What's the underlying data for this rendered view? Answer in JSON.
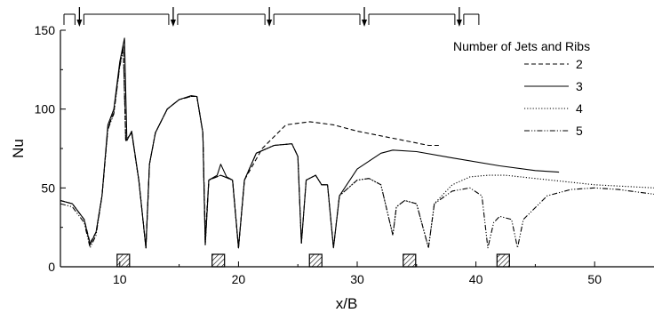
{
  "chart_data": {
    "type": "line",
    "xlabel": "x/B",
    "ylabel": "Nu",
    "xlim": [
      5,
      55
    ],
    "ylim": [
      0,
      150
    ],
    "x_ticks": [
      10,
      20,
      30,
      40,
      50
    ],
    "y_ticks": [
      0,
      50,
      100,
      150
    ],
    "legend": {
      "title": "Number of Jets and Ribs",
      "placement": "top-right"
    },
    "series": [
      {
        "name": "2",
        "dash": "dashed",
        "points": [
          [
            5,
            42
          ],
          [
            6,
            40
          ],
          [
            7,
            30
          ],
          [
            7.5,
            15
          ],
          [
            8,
            22
          ],
          [
            8.5,
            45
          ],
          [
            9,
            88
          ],
          [
            9.5,
            98
          ],
          [
            10,
            128
          ],
          [
            10.3,
            140
          ],
          [
            10.5,
            80
          ],
          [
            11,
            85
          ],
          [
            11.6,
            55
          ],
          [
            12.2,
            12
          ],
          [
            12.5,
            65
          ],
          [
            13,
            85
          ],
          [
            14,
            100
          ],
          [
            15,
            106
          ],
          [
            16,
            108
          ],
          [
            16.5,
            108
          ],
          [
            17,
            85
          ],
          [
            17.2,
            20
          ],
          [
            17.5,
            55
          ],
          [
            18.5,
            58
          ],
          [
            19.5,
            55
          ],
          [
            20,
            12
          ],
          [
            20.5,
            55
          ],
          [
            22,
            75
          ],
          [
            24,
            90
          ],
          [
            26,
            92
          ],
          [
            28,
            90
          ],
          [
            30,
            86
          ],
          [
            32,
            83
          ],
          [
            34,
            80
          ],
          [
            36,
            77
          ],
          [
            37,
            77
          ]
        ]
      },
      {
        "name": "3",
        "dash": "solid",
        "points": [
          [
            5,
            42
          ],
          [
            6,
            40
          ],
          [
            7,
            30
          ],
          [
            7.5,
            14
          ],
          [
            8,
            22
          ],
          [
            8.5,
            45
          ],
          [
            9,
            90
          ],
          [
            9.5,
            100
          ],
          [
            10,
            130
          ],
          [
            10.4,
            145
          ],
          [
            10.6,
            80
          ],
          [
            11,
            86
          ],
          [
            11.6,
            55
          ],
          [
            12.2,
            12
          ],
          [
            12.5,
            65
          ],
          [
            13,
            85
          ],
          [
            14,
            100
          ],
          [
            15,
            106
          ],
          [
            16,
            108.5
          ],
          [
            16.5,
            108
          ],
          [
            17,
            85
          ],
          [
            17.2,
            14
          ],
          [
            17.5,
            55
          ],
          [
            18.2,
            58
          ],
          [
            18.5,
            65
          ],
          [
            19,
            57
          ],
          [
            19.5,
            55
          ],
          [
            20,
            12
          ],
          [
            20.5,
            55
          ],
          [
            21.5,
            72
          ],
          [
            23,
            77
          ],
          [
            24.5,
            78
          ],
          [
            25,
            70
          ],
          [
            25.3,
            15
          ],
          [
            25.7,
            55
          ],
          [
            26.5,
            58
          ],
          [
            27,
            52
          ],
          [
            27.5,
            52
          ],
          [
            28,
            12
          ],
          [
            28.5,
            45
          ],
          [
            30,
            62
          ],
          [
            32,
            72
          ],
          [
            33,
            74
          ],
          [
            35,
            73
          ],
          [
            38,
            69
          ],
          [
            42,
            64
          ],
          [
            45,
            61
          ],
          [
            47,
            60
          ]
        ]
      },
      {
        "name": "4",
        "dash": "dotted",
        "points": [
          [
            5,
            42
          ],
          [
            6,
            40
          ],
          [
            7,
            30
          ],
          [
            7.5,
            14
          ],
          [
            8,
            22
          ],
          [
            8.5,
            45
          ],
          [
            9,
            88
          ],
          [
            9.5,
            98
          ],
          [
            10,
            128
          ],
          [
            10.3,
            140
          ],
          [
            10.5,
            80
          ],
          [
            11,
            85
          ],
          [
            11.6,
            55
          ],
          [
            12.2,
            12
          ],
          [
            12.5,
            65
          ],
          [
            13,
            85
          ],
          [
            14,
            100
          ],
          [
            15,
            106
          ],
          [
            16,
            108
          ],
          [
            16.5,
            108
          ],
          [
            17,
            85
          ],
          [
            17.2,
            14
          ],
          [
            17.5,
            55
          ],
          [
            18.5,
            58
          ],
          [
            19.5,
            55
          ],
          [
            20,
            12
          ],
          [
            20.5,
            55
          ],
          [
            21.5,
            72
          ],
          [
            23,
            77
          ],
          [
            24.5,
            78
          ],
          [
            25,
            70
          ],
          [
            25.3,
            15
          ],
          [
            25.7,
            55
          ],
          [
            26.5,
            58
          ],
          [
            27,
            52
          ],
          [
            27.5,
            52
          ],
          [
            28,
            12
          ],
          [
            28.5,
            45
          ],
          [
            30,
            55
          ],
          [
            31,
            56
          ],
          [
            32,
            52
          ],
          [
            33,
            20
          ],
          [
            33.3,
            38
          ],
          [
            34,
            42
          ],
          [
            35,
            40
          ],
          [
            36,
            12
          ],
          [
            36.5,
            40
          ],
          [
            38,
            52
          ],
          [
            39.5,
            57
          ],
          [
            41,
            58
          ],
          [
            42.5,
            58
          ],
          [
            45,
            56
          ],
          [
            50,
            52
          ],
          [
            55,
            50
          ]
        ]
      },
      {
        "name": "5",
        "dash": "dashdotdot",
        "points": [
          [
            5,
            40
          ],
          [
            6,
            38
          ],
          [
            7,
            28
          ],
          [
            7.5,
            12
          ],
          [
            8,
            20
          ],
          [
            8.5,
            45
          ],
          [
            9,
            87
          ],
          [
            9.5,
            97
          ],
          [
            10,
            127
          ],
          [
            10.3,
            138
          ],
          [
            10.5,
            80
          ],
          [
            11,
            85
          ],
          [
            11.6,
            55
          ],
          [
            12.2,
            12
          ],
          [
            12.5,
            65
          ],
          [
            13,
            85
          ],
          [
            14,
            100
          ],
          [
            15,
            106
          ],
          [
            16,
            108
          ],
          [
            16.5,
            108
          ],
          [
            17,
            85
          ],
          [
            17.2,
            14
          ],
          [
            17.5,
            55
          ],
          [
            18.5,
            58
          ],
          [
            19.5,
            55
          ],
          [
            20,
            12
          ],
          [
            20.5,
            55
          ],
          [
            21.5,
            72
          ],
          [
            23,
            77
          ],
          [
            24.5,
            78
          ],
          [
            25,
            70
          ],
          [
            25.3,
            15
          ],
          [
            25.7,
            55
          ],
          [
            26.5,
            58
          ],
          [
            27,
            52
          ],
          [
            27.5,
            52
          ],
          [
            28,
            12
          ],
          [
            28.5,
            45
          ],
          [
            30,
            55
          ],
          [
            31,
            56
          ],
          [
            32,
            52
          ],
          [
            33,
            20
          ],
          [
            33.3,
            38
          ],
          [
            34,
            42
          ],
          [
            35,
            40
          ],
          [
            36,
            12
          ],
          [
            36.5,
            40
          ],
          [
            38,
            48
          ],
          [
            39.5,
            50
          ],
          [
            40.5,
            45
          ],
          [
            41,
            12
          ],
          [
            41.5,
            28
          ],
          [
            42,
            32
          ],
          [
            43,
            30
          ],
          [
            43.5,
            12
          ],
          [
            44,
            30
          ],
          [
            46,
            45
          ],
          [
            48,
            49
          ],
          [
            50,
            50
          ],
          [
            52,
            49
          ],
          [
            55,
            46
          ]
        ]
      }
    ],
    "rib_positions": [
      10.3,
      18.3,
      26.5,
      34.4,
      42.3
    ],
    "jet_positions": [
      6.6,
      14.5,
      22.6,
      30.6,
      38.6
    ]
  }
}
